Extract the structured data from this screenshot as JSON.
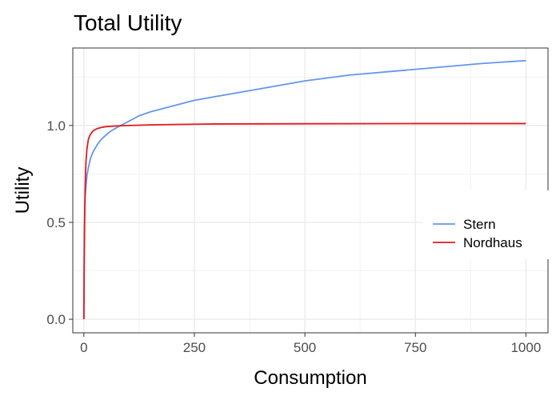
{
  "chart_data": {
    "type": "line",
    "title": "Total Utility",
    "xlabel": "Consumption",
    "ylabel": "Utility",
    "xlim": [
      -25,
      1050
    ],
    "ylim": [
      -0.07,
      1.4
    ],
    "x_ticks": [
      0,
      250,
      500,
      750,
      1000
    ],
    "x_tick_labels": [
      "0",
      "250",
      "500",
      "750",
      "1000"
    ],
    "y_ticks": [
      0.0,
      0.5,
      1.0
    ],
    "y_tick_labels": [
      "0.0",
      "0.5",
      "1.0"
    ],
    "grid": true,
    "legend_position": "right",
    "series": [
      {
        "name": "Stern",
        "color": "#6495ED",
        "x": [
          0,
          1,
          2,
          3,
          5,
          7,
          10,
          15,
          20,
          30,
          40,
          50,
          60,
          75,
          100,
          125,
          150,
          200,
          250,
          300,
          400,
          500,
          600,
          700,
          800,
          900,
          1000
        ],
        "y": [
          0.0,
          0.45,
          0.57,
          0.63,
          0.69,
          0.74,
          0.78,
          0.83,
          0.86,
          0.9,
          0.93,
          0.95,
          0.97,
          0.99,
          1.02,
          1.05,
          1.07,
          1.1,
          1.13,
          1.15,
          1.19,
          1.23,
          1.26,
          1.28,
          1.3,
          1.32,
          1.335
        ]
      },
      {
        "name": "Nordhaus",
        "color": "#E41A1C",
        "x": [
          0,
          1,
          2,
          3,
          4,
          5,
          7,
          10,
          12,
          15,
          20,
          25,
          30,
          40,
          50,
          75,
          100,
          150,
          200,
          300,
          500,
          750,
          1000
        ],
        "y": [
          0.0,
          0.33,
          0.55,
          0.68,
          0.76,
          0.82,
          0.88,
          0.925,
          0.94,
          0.955,
          0.97,
          0.978,
          0.984,
          0.99,
          0.994,
          0.998,
          1.0,
          1.003,
          1.005,
          1.008,
          1.009,
          1.01,
          1.01
        ]
      }
    ]
  }
}
